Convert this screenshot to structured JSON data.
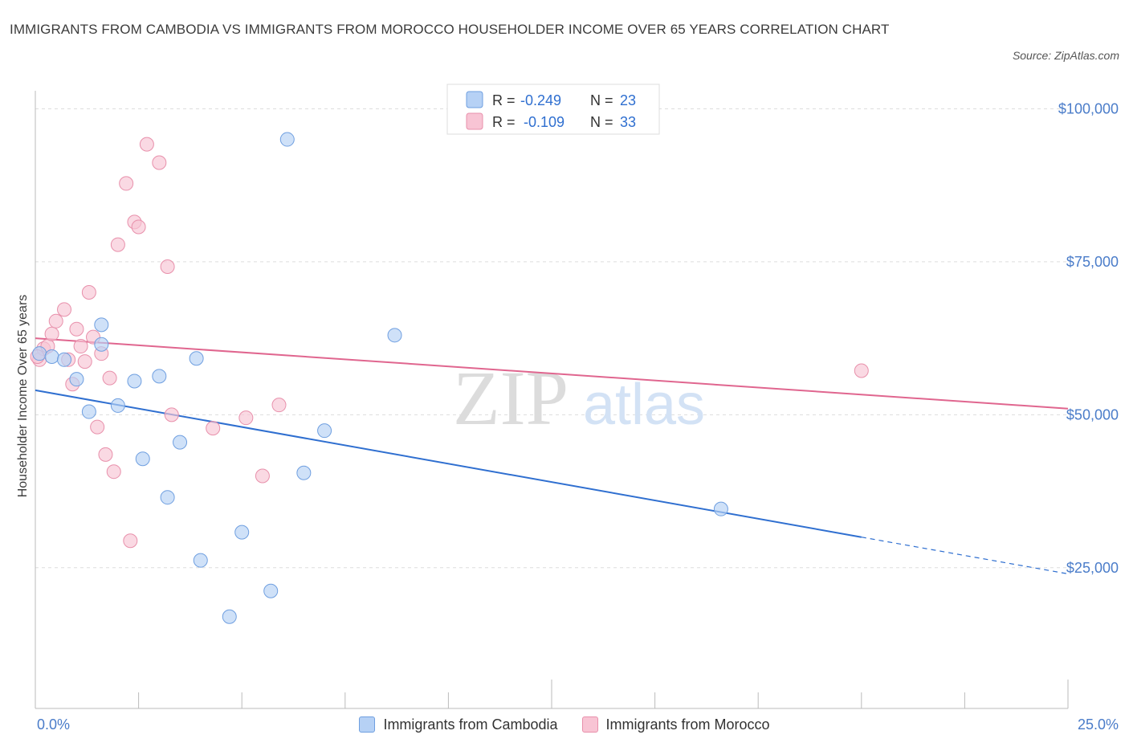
{
  "header": {
    "title": "IMMIGRANTS FROM CAMBODIA VS IMMIGRANTS FROM MOROCCO HOUSEHOLDER INCOME OVER 65 YEARS CORRELATION CHART",
    "source": "Source: ZipAtlas.com"
  },
  "watermark": {
    "zip": "ZIP",
    "atlas": "atlas"
  },
  "colors": {
    "cambodia_fill": "#b6d1f5",
    "cambodia_stroke": "#6f9fe0",
    "cambodia_line": "#2f6fd0",
    "morocco_fill": "#f8c4d4",
    "morocco_stroke": "#e890ab",
    "morocco_line": "#e0668f",
    "tick": "#4a7cc9",
    "grid": "#dddddd"
  },
  "legend": {
    "rows": [
      {
        "r_label": "R =",
        "r_value": "-0.249",
        "n_label": "N =",
        "n_value": "23"
      },
      {
        "r_label": "R =",
        "r_value": "-0.109",
        "n_label": "N =",
        "n_value": "33"
      }
    ]
  },
  "chart_data": {
    "type": "scatter",
    "title": "IMMIGRANTS FROM CAMBODIA VS IMMIGRANTS FROM MOROCCO HOUSEHOLDER INCOME OVER 65 YEARS CORRELATION CHART",
    "xlabel": "",
    "ylabel": "Householder Income Over 65 years",
    "xlim": [
      0,
      25
    ],
    "ylim": [
      2000,
      104000
    ],
    "x_tick_labels": [
      "0.0%",
      "25.0%"
    ],
    "y_ticks": [
      25000,
      50000,
      75000,
      100000
    ],
    "y_tick_labels": [
      "$25,000",
      "$50,000",
      "$75,000",
      "$100,000"
    ],
    "grid": true,
    "legend_position": "top-center",
    "series": [
      {
        "name": "Immigrants from Cambodia",
        "r": -0.249,
        "n": 23,
        "trend": {
          "x0": 0,
          "y0": 54000,
          "x1": 20,
          "y1": 30000,
          "x_dash_end": 25,
          "y_dash_end": 24000
        },
        "points": [
          [
            0.1,
            60000
          ],
          [
            0.4,
            59500
          ],
          [
            0.7,
            59000
          ],
          [
            1.0,
            55800
          ],
          [
            1.3,
            50500
          ],
          [
            1.6,
            64700
          ],
          [
            1.6,
            61500
          ],
          [
            2.0,
            51500
          ],
          [
            2.4,
            55500
          ],
          [
            2.6,
            42800
          ],
          [
            3.0,
            56300
          ],
          [
            3.2,
            36500
          ],
          [
            3.5,
            45500
          ],
          [
            3.9,
            59200
          ],
          [
            4.0,
            26200
          ],
          [
            4.7,
            17000
          ],
          [
            5.0,
            30800
          ],
          [
            5.7,
            21200
          ],
          [
            6.1,
            95000
          ],
          [
            6.5,
            40500
          ],
          [
            7.0,
            47400
          ],
          [
            8.7,
            63000
          ],
          [
            16.6,
            34600
          ]
        ]
      },
      {
        "name": "Immigrants from Morocco",
        "r": -0.109,
        "n": 33,
        "trend": {
          "x0": 0,
          "y0": 62500,
          "x1": 25,
          "y1": 51000
        },
        "points": [
          [
            0.1,
            59000
          ],
          [
            0.2,
            60800
          ],
          [
            0.3,
            61200
          ],
          [
            0.4,
            63200
          ],
          [
            0.5,
            65300
          ],
          [
            0.7,
            67200
          ],
          [
            0.8,
            59000
          ],
          [
            0.9,
            55000
          ],
          [
            1.0,
            64000
          ],
          [
            1.1,
            61200
          ],
          [
            1.2,
            58700
          ],
          [
            1.3,
            70000
          ],
          [
            1.4,
            62700
          ],
          [
            1.5,
            48000
          ],
          [
            1.6,
            60000
          ],
          [
            1.7,
            43500
          ],
          [
            1.8,
            56000
          ],
          [
            1.9,
            40700
          ],
          [
            2.0,
            77800
          ],
          [
            2.2,
            87800
          ],
          [
            2.3,
            29400
          ],
          [
            2.4,
            81500
          ],
          [
            2.5,
            80700
          ],
          [
            2.7,
            94200
          ],
          [
            3.0,
            91200
          ],
          [
            3.2,
            74200
          ],
          [
            3.3,
            50000
          ],
          [
            4.3,
            47800
          ],
          [
            5.1,
            49500
          ],
          [
            5.5,
            40000
          ],
          [
            5.9,
            51600
          ],
          [
            20.0,
            57200
          ],
          [
            0.05,
            59500
          ]
        ]
      }
    ]
  }
}
